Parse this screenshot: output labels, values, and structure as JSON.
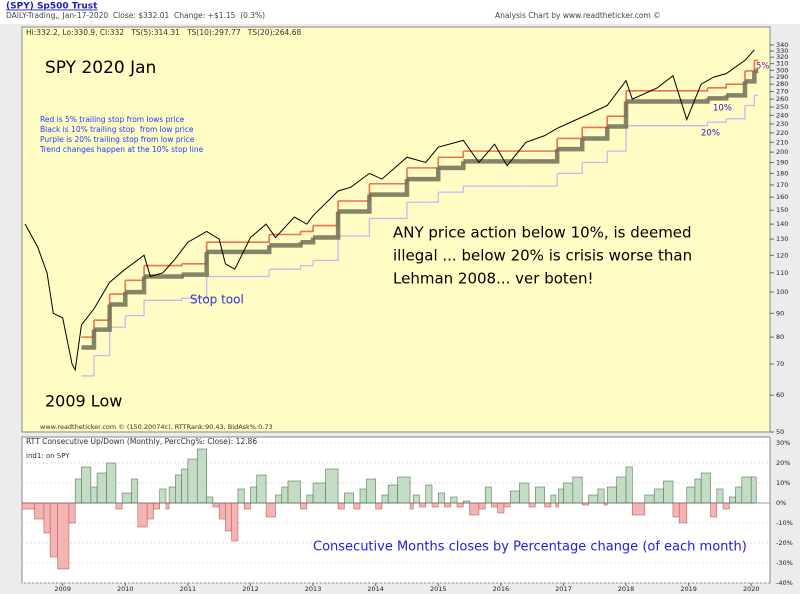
{
  "header": {
    "symbol": "(SPY) Sp500 Trust",
    "info": "DAILY-Trading,, Jan-17-2020  Close: $332.01  Change: +$1.15  (0.3%)",
    "credit": "Analysis Chart by www.readtheticker.com ©"
  },
  "chart_data": [
    {
      "type": "line",
      "legend_text": "Hi:332.2, Lo:330.9, Cl:332   TS(5):314.31   TS(10):297.77   TS(20):264.68",
      "footer": "www.readtheticker.com © (150.20074c), RTTRank:90.43, BidAsk%:0.73",
      "annotations": [
        "SPY 2020 Jan",
        "Red is 5% trailing stop from lows price",
        "Black is 10% trailing stop  from low price",
        "Purple is 20% trailing stop from low price",
        "Trend changes happen at the 10% stop line",
        "ANY price action below 10%, is deemed",
        "illegal ... below 20% is crisis worse than",
        "Lehman 2008... ver boten!",
        "Stop tool",
        "2009 Low",
        "5%",
        "10%",
        "20%"
      ],
      "log_scale": true,
      "xlim": [
        2008.35,
        2020.3
      ],
      "ylim": [
        50,
        340
      ],
      "yticks": [
        50,
        60,
        70,
        80,
        90,
        100,
        110,
        120,
        130,
        140,
        150,
        160,
        170,
        180,
        190,
        200,
        210,
        220,
        230,
        240,
        250,
        260,
        270,
        280,
        290,
        300,
        310,
        320,
        330,
        340
      ],
      "series": [
        {
          "name": "Price",
          "color": "#000000",
          "x": [
            2008.4,
            2008.6,
            2008.75,
            2008.85,
            2009.0,
            2009.15,
            2009.2,
            2009.3,
            2009.5,
            2009.75,
            2010.0,
            2010.3,
            2010.4,
            2010.6,
            2010.8,
            2011.0,
            2011.3,
            2011.5,
            2011.6,
            2011.75,
            2012.0,
            2012.25,
            2012.4,
            2012.7,
            2012.9,
            2013.0,
            2013.4,
            2013.6,
            2013.9,
            2014.1,
            2014.5,
            2014.8,
            2015.0,
            2015.4,
            2015.65,
            2015.9,
            2016.1,
            2016.4,
            2016.7,
            2016.9,
            2017.3,
            2017.7,
            2018.0,
            2018.1,
            2018.5,
            2018.75,
            2018.97,
            2019.2,
            2019.4,
            2019.6,
            2019.9,
            2020.05
          ],
          "values": [
            140,
            125,
            110,
            90,
            88,
            70,
            68,
            85,
            92,
            105,
            112,
            120,
            108,
            110,
            118,
            128,
            135,
            130,
            115,
            112,
            131,
            140,
            131,
            145,
            140,
            146,
            165,
            168,
            180,
            175,
            195,
            190,
            205,
            212,
            190,
            208,
            187,
            210,
            217,
            225,
            238,
            252,
            285,
            260,
            275,
            292,
            235,
            280,
            290,
            295,
            315,
            332
          ]
        },
        {
          "name": "5% stop",
          "color": "#f07050",
          "x": [
            2009.3,
            2009.5,
            2009.75,
            2010.0,
            2010.3,
            2010.9,
            2011.3,
            2012.0,
            2012.3,
            2012.8,
            2013.0,
            2013.4,
            2013.9,
            2014.5,
            2015.0,
            2015.4,
            2016.4,
            2016.9,
            2017.3,
            2017.7,
            2018.0,
            2019.3,
            2019.6,
            2019.9,
            2020.05
          ],
          "values": [
            80,
            87,
            99,
            106,
            114,
            115,
            128,
            128,
            133,
            135,
            139,
            157,
            171,
            185,
            195,
            201,
            201,
            214,
            226,
            239,
            271,
            275,
            280,
            299,
            315
          ]
        },
        {
          "name": "10% stop",
          "color": "#6e6e56",
          "x": [
            2009.3,
            2009.5,
            2009.75,
            2010.0,
            2010.3,
            2010.9,
            2011.3,
            2012.0,
            2012.3,
            2012.8,
            2013.0,
            2013.4,
            2013.9,
            2014.5,
            2015.0,
            2015.4,
            2016.4,
            2016.9,
            2017.3,
            2017.7,
            2018.0,
            2019.3,
            2019.6,
            2019.9,
            2020.05
          ],
          "values": [
            76,
            83,
            94,
            100,
            108,
            109,
            122,
            122,
            126,
            128,
            131,
            149,
            162,
            175,
            185,
            191,
            191,
            203,
            214,
            227,
            257,
            261,
            265,
            284,
            299
          ]
        },
        {
          "name": "20% stop",
          "color": "#d4b4f0",
          "x": [
            2009.3,
            2009.5,
            2009.75,
            2010.0,
            2010.3,
            2010.9,
            2011.3,
            2012.0,
            2012.3,
            2012.8,
            2013.0,
            2013.4,
            2013.9,
            2014.5,
            2015.0,
            2015.4,
            2016.4,
            2016.9,
            2017.3,
            2017.7,
            2018.0,
            2019.3,
            2019.6,
            2019.9,
            2020.05
          ],
          "values": [
            66,
            73,
            84,
            89,
            96,
            97,
            108,
            108,
            112,
            114,
            117,
            132,
            144,
            156,
            164,
            169,
            169,
            180,
            190,
            201,
            228,
            232,
            236,
            252,
            265
          ]
        }
      ]
    },
    {
      "type": "bar",
      "title": "RTT Consecutive Up/Down (Monthly, PercChg%: Close): 12.86",
      "subtitle": "ind1: on SPY",
      "annotation": "Consecutive Months closes by Percentage change (of each month)",
      "colors": {
        "up": "#c4dcc4",
        "down": "#f4b4b4"
      },
      "xlim": [
        2008.35,
        2020.3
      ],
      "xticks": [
        2009,
        2010,
        2011,
        2012,
        2013,
        2014,
        2015,
        2016,
        2017,
        2018,
        2019,
        2020
      ],
      "ylim": [
        -40,
        30
      ],
      "yticks": [
        {
          "value": -40,
          "label": "-40%"
        },
        {
          "value": -30,
          "label": "-30%"
        },
        {
          "value": -20,
          "label": "-20%"
        },
        {
          "value": -10,
          "label": "-10%"
        },
        {
          "value": 0,
          "label": "0%"
        },
        {
          "value": 10,
          "label": "10%"
        },
        {
          "value": 20,
          "label": "20%"
        },
        {
          "value": 30,
          "label": "30%"
        }
      ],
      "x": [
        2008.35,
        2008.55,
        2008.7,
        2008.8,
        2008.92,
        2009.1,
        2009.2,
        2009.3,
        2009.45,
        2009.55,
        2009.7,
        2009.85,
        2009.95,
        2010.1,
        2010.2,
        2010.35,
        2010.45,
        2010.55,
        2010.65,
        2010.7,
        2010.8,
        2010.9,
        2011.0,
        2011.15,
        2011.3,
        2011.4,
        2011.5,
        2011.6,
        2011.7,
        2011.8,
        2011.9,
        2012.0,
        2012.1,
        2012.25,
        2012.4,
        2012.5,
        2012.6,
        2012.8,
        2012.9,
        2013.0,
        2013.2,
        2013.4,
        2013.5,
        2013.65,
        2013.75,
        2013.85,
        2014.0,
        2014.1,
        2014.2,
        2014.35,
        2014.55,
        2014.6,
        2014.7,
        2014.8,
        2014.9,
        2015.0,
        2015.1,
        2015.2,
        2015.3,
        2015.4,
        2015.5,
        2015.65,
        2015.75,
        2015.85,
        2015.95,
        2016.05,
        2016.15,
        2016.3,
        2016.45,
        2016.55,
        2016.7,
        2016.8,
        2016.88,
        2016.92,
        2017.0,
        2017.15,
        2017.3,
        2017.4,
        2017.55,
        2017.65,
        2017.7,
        2017.85,
        2018.0,
        2018.1,
        2018.3,
        2018.45,
        2018.6,
        2018.75,
        2018.85,
        2018.97,
        2019.1,
        2019.2,
        2019.35,
        2019.45,
        2019.55,
        2019.65,
        2019.75,
        2019.85,
        2020.0
      ],
      "values": [
        -3,
        -8,
        -15,
        -27,
        -33,
        -10,
        12,
        18,
        8,
        15,
        20,
        -3,
        5,
        12,
        -12,
        -8,
        -3,
        7,
        -3,
        8,
        14,
        17,
        22,
        27,
        3,
        -2,
        -8,
        -14,
        -19,
        7,
        -3,
        8,
        14,
        -7,
        4,
        8,
        11,
        -3,
        4,
        10,
        17,
        -3,
        5,
        -3,
        7,
        12,
        -3,
        4,
        9,
        13,
        -3,
        4,
        -2,
        9,
        -2,
        5,
        -2,
        3,
        -2,
        1,
        -6,
        -3,
        8,
        -2,
        -5,
        -2,
        6,
        10,
        -2,
        8,
        -2,
        4,
        -2,
        7,
        10,
        13,
        -1,
        4,
        7,
        -1,
        8,
        13,
        18,
        -6,
        4,
        7,
        11,
        -7,
        -10,
        8,
        12,
        15,
        -7,
        7,
        -3,
        3,
        8,
        13,
        13
      ]
    }
  ]
}
